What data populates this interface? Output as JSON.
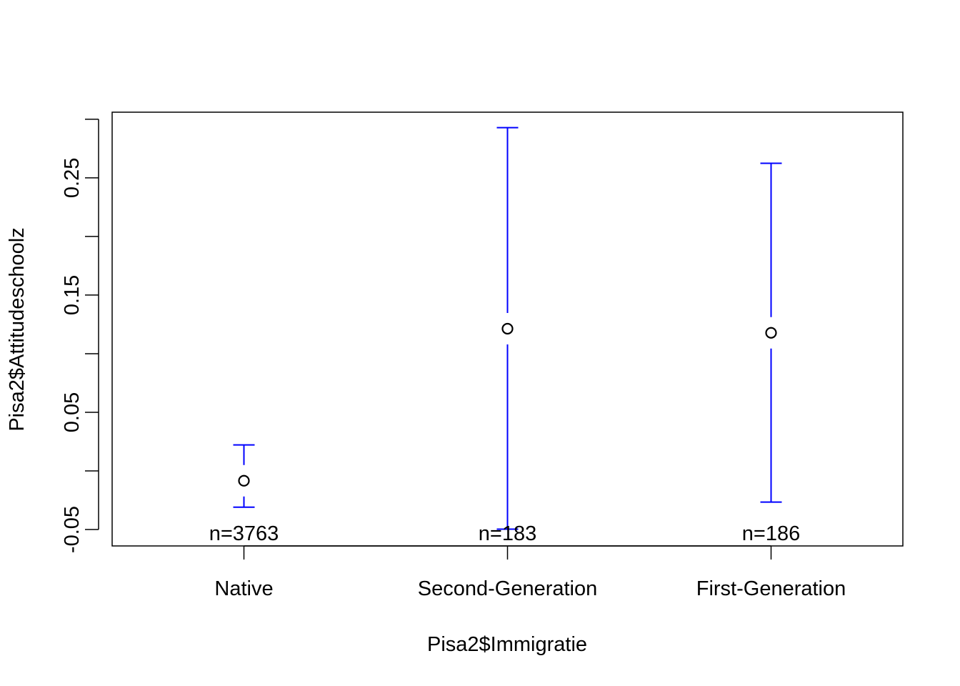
{
  "chart_data": {
    "type": "errorbar",
    "title": "",
    "xlabel": "Pisa2$Immigratie",
    "ylabel": "Pisa2$Attitudeschoolz",
    "categories": [
      "Native",
      "Second-Generation",
      "First-Generation"
    ],
    "means": [
      -0.0084,
      0.1213,
      0.1178
    ],
    "lower": [
      -0.0309,
      -0.0497,
      -0.0266
    ],
    "upper": [
      0.0222,
      0.2928,
      0.2624
    ],
    "n_labels": [
      "n=3763",
      "n=183",
      "n=186"
    ],
    "ylim": [
      -0.064,
      0.306
    ],
    "yticks": [
      -0.05,
      0.0,
      0.05,
      0.1,
      0.15,
      0.2,
      0.25,
      0.3
    ],
    "ytick_labels": [
      "-0.05",
      "",
      "0.05",
      "",
      "0.15",
      "",
      "0.25",
      ""
    ],
    "grid": false,
    "legend": "none",
    "colors": {
      "errorbar": "#0000ff",
      "points": "#000000",
      "axes": "#000000"
    }
  }
}
